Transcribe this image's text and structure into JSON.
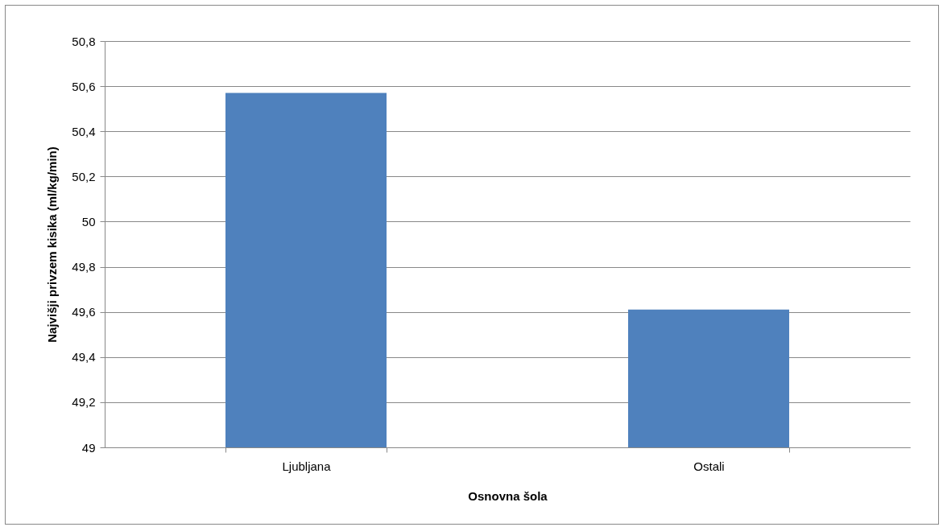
{
  "chart_data": {
    "type": "bar",
    "xlabel": "Osnovna šola",
    "ylabel": "Najvišji privzem kisika (ml/kg/min)",
    "categories": [
      "Ljubljana",
      "Ostali"
    ],
    "values": [
      50.57,
      49.61
    ],
    "color": "#4f81bd",
    "ylim": [
      49,
      50.8
    ],
    "yticks": [
      {
        "value": 49,
        "label": "49"
      },
      {
        "value": 49.2,
        "label": "49,2"
      },
      {
        "value": 49.4,
        "label": "49,4"
      },
      {
        "value": 49.6,
        "label": "49,6"
      },
      {
        "value": 49.8,
        "label": "49,8"
      },
      {
        "value": 50,
        "label": "50"
      },
      {
        "value": 50.2,
        "label": "50,2"
      },
      {
        "value": 50.4,
        "label": "50,4"
      },
      {
        "value": 50.6,
        "label": "50,6"
      },
      {
        "value": 50.8,
        "label": "50,8"
      }
    ],
    "grid": "y"
  }
}
